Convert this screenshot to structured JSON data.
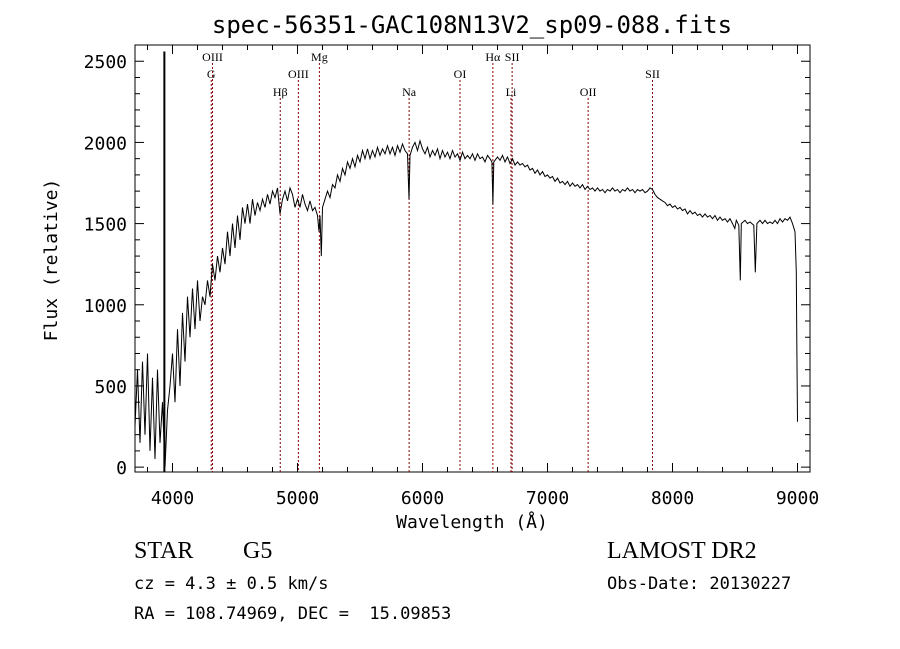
{
  "chart_data": {
    "type": "line",
    "title": "spec-56351-GAC108N13V2_sp09-088.fits",
    "xlabel": "Wavelength (Å)",
    "ylabel": "Flux (relative)",
    "xlim": [
      3700,
      9100
    ],
    "ylim": [
      -30,
      2600
    ],
    "xticks": [
      4000,
      5000,
      6000,
      7000,
      8000,
      9000
    ],
    "yticks": [
      0,
      500,
      1000,
      1500,
      2000,
      2500
    ],
    "xtick_labels": [
      "4000",
      "5000",
      "6000",
      "7000",
      "8000",
      "9000"
    ],
    "ytick_labels": [
      "0",
      "500",
      "1000",
      "1500",
      "2000",
      "2500"
    ],
    "grid": false,
    "legend": "none",
    "line_color": "#000000",
    "marker_line_color": "#8b0000",
    "vertical_marker": {
      "x": 3935,
      "y_top": 2560
    },
    "spectral_lines": [
      {
        "label": "OIII",
        "x": 4320,
        "row": 0
      },
      {
        "label": "G",
        "x": 4310,
        "row": 1
      },
      {
        "label": "Hβ",
        "x": 4862,
        "row": 2
      },
      {
        "label": "OIII",
        "x": 5007,
        "row": 1
      },
      {
        "label": "Mg",
        "x": 5175,
        "row": 0
      },
      {
        "label": "Na",
        "x": 5893,
        "row": 2
      },
      {
        "label": "OI",
        "x": 6300,
        "row": 1
      },
      {
        "label": "Hα",
        "x": 6563,
        "row": 0
      },
      {
        "label": "SII",
        "x": 6717,
        "row": 0
      },
      {
        "label": "Li",
        "x": 6708,
        "row": 2
      },
      {
        "label": "OII",
        "x": 7325,
        "row": 2
      },
      {
        "label": "SII",
        "x": 7840,
        "row": 1
      }
    ],
    "series": [
      {
        "points": [
          [
            3700,
            250
          ],
          [
            3720,
            600
          ],
          [
            3740,
            150
          ],
          [
            3760,
            650
          ],
          [
            3780,
            200
          ],
          [
            3800,
            700
          ],
          [
            3820,
            100
          ],
          [
            3840,
            550
          ],
          [
            3860,
            50
          ],
          [
            3880,
            600
          ],
          [
            3900,
            150
          ],
          [
            3920,
            400
          ],
          [
            3940,
            0
          ],
          [
            3960,
            350
          ],
          [
            3980,
            500
          ],
          [
            4000,
            700
          ],
          [
            4020,
            400
          ],
          [
            4040,
            850
          ],
          [
            4060,
            500
          ],
          [
            4080,
            950
          ],
          [
            4100,
            650
          ],
          [
            4120,
            1050
          ],
          [
            4140,
            800
          ],
          [
            4160,
            1100
          ],
          [
            4180,
            850
          ],
          [
            4200,
            1150
          ],
          [
            4220,
            900
          ],
          [
            4240,
            1050
          ],
          [
            4260,
            1000
          ],
          [
            4280,
            1150
          ],
          [
            4300,
            1050
          ],
          [
            4320,
            1250
          ],
          [
            4340,
            1150
          ],
          [
            4360,
            1300
          ],
          [
            4380,
            1200
          ],
          [
            4400,
            1350
          ],
          [
            4420,
            1250
          ],
          [
            4440,
            1450
          ],
          [
            4460,
            1300
          ],
          [
            4480,
            1500
          ],
          [
            4500,
            1350
          ],
          [
            4520,
            1550
          ],
          [
            4540,
            1400
          ],
          [
            4560,
            1600
          ],
          [
            4580,
            1500
          ],
          [
            4600,
            1620
          ],
          [
            4620,
            1500
          ],
          [
            4640,
            1650
          ],
          [
            4660,
            1550
          ],
          [
            4680,
            1630
          ],
          [
            4700,
            1580
          ],
          [
            4720,
            1650
          ],
          [
            4740,
            1600
          ],
          [
            4760,
            1680
          ],
          [
            4780,
            1620
          ],
          [
            4800,
            1700
          ],
          [
            4820,
            1660
          ],
          [
            4840,
            1720
          ],
          [
            4860,
            1560
          ],
          [
            4880,
            1650
          ],
          [
            4900,
            1700
          ],
          [
            4920,
            1640
          ],
          [
            4940,
            1720
          ],
          [
            4960,
            1680
          ],
          [
            4980,
            1600
          ],
          [
            5000,
            1650
          ],
          [
            5020,
            1600
          ],
          [
            5040,
            1680
          ],
          [
            5060,
            1620
          ],
          [
            5080,
            1580
          ],
          [
            5100,
            1640
          ],
          [
            5120,
            1580
          ],
          [
            5140,
            1600
          ],
          [
            5160,
            1550
          ],
          [
            5172,
            1450
          ],
          [
            5180,
            1550
          ],
          [
            5190,
            1300
          ],
          [
            5200,
            1600
          ],
          [
            5220,
            1650
          ],
          [
            5240,
            1700
          ],
          [
            5260,
            1660
          ],
          [
            5280,
            1740
          ],
          [
            5300,
            1720
          ],
          [
            5320,
            1800
          ],
          [
            5340,
            1760
          ],
          [
            5360,
            1840
          ],
          [
            5380,
            1800
          ],
          [
            5400,
            1880
          ],
          [
            5420,
            1840
          ],
          [
            5440,
            1900
          ],
          [
            5460,
            1850
          ],
          [
            5480,
            1920
          ],
          [
            5500,
            1880
          ],
          [
            5520,
            1950
          ],
          [
            5540,
            1900
          ],
          [
            5560,
            1960
          ],
          [
            5580,
            1900
          ],
          [
            5600,
            1950
          ],
          [
            5620,
            1910
          ],
          [
            5640,
            1970
          ],
          [
            5660,
            1920
          ],
          [
            5680,
            1960
          ],
          [
            5700,
            1930
          ],
          [
            5720,
            1980
          ],
          [
            5740,
            1930
          ],
          [
            5760,
            1970
          ],
          [
            5780,
            1920
          ],
          [
            5800,
            1980
          ],
          [
            5820,
            1940
          ],
          [
            5840,
            1990
          ],
          [
            5860,
            1950
          ],
          [
            5880,
            1930
          ],
          [
            5892,
            1650
          ],
          [
            5900,
            1920
          ],
          [
            5920,
            1970
          ],
          [
            5940,
            2000
          ],
          [
            5960,
            1950
          ],
          [
            5980,
            2010
          ],
          [
            6000,
            1960
          ],
          [
            6020,
            1930
          ],
          [
            6040,
            1970
          ],
          [
            6060,
            1910
          ],
          [
            6080,
            1950
          ],
          [
            6100,
            1920
          ],
          [
            6120,
            1960
          ],
          [
            6140,
            1900
          ],
          [
            6160,
            1950
          ],
          [
            6180,
            1910
          ],
          [
            6200,
            1940
          ],
          [
            6220,
            1900
          ],
          [
            6240,
            1950
          ],
          [
            6260,
            1910
          ],
          [
            6280,
            1930
          ],
          [
            6300,
            1890
          ],
          [
            6320,
            1940
          ],
          [
            6340,
            1900
          ],
          [
            6360,
            1920
          ],
          [
            6380,
            1900
          ],
          [
            6400,
            1930
          ],
          [
            6420,
            1890
          ],
          [
            6440,
            1930
          ],
          [
            6460,
            1900
          ],
          [
            6480,
            1910
          ],
          [
            6500,
            1880
          ],
          [
            6520,
            1920
          ],
          [
            6540,
            1900
          ],
          [
            6555,
            1880
          ],
          [
            6563,
            1620
          ],
          [
            6570,
            1880
          ],
          [
            6600,
            1910
          ],
          [
            6620,
            1890
          ],
          [
            6640,
            1920
          ],
          [
            6660,
            1880
          ],
          [
            6680,
            1910
          ],
          [
            6700,
            1870
          ],
          [
            6720,
            1900
          ],
          [
            6740,
            1860
          ],
          [
            6760,
            1880
          ],
          [
            6780,
            1860
          ],
          [
            6800,
            1870
          ],
          [
            6820,
            1850
          ],
          [
            6840,
            1860
          ],
          [
            6860,
            1830
          ],
          [
            6880,
            1840
          ],
          [
            6900,
            1810
          ],
          [
            6920,
            1830
          ],
          [
            6940,
            1800
          ],
          [
            6960,
            1820
          ],
          [
            6980,
            1790
          ],
          [
            7000,
            1800
          ],
          [
            7020,
            1780
          ],
          [
            7040,
            1790
          ],
          [
            7060,
            1760
          ],
          [
            7080,
            1780
          ],
          [
            7100,
            1750
          ],
          [
            7120,
            1760
          ],
          [
            7140,
            1740
          ],
          [
            7160,
            1760
          ],
          [
            7180,
            1730
          ],
          [
            7200,
            1750
          ],
          [
            7220,
            1730
          ],
          [
            7240,
            1740
          ],
          [
            7260,
            1720
          ],
          [
            7280,
            1740
          ],
          [
            7300,
            1710
          ],
          [
            7320,
            1730
          ],
          [
            7340,
            1710
          ],
          [
            7360,
            1720
          ],
          [
            7380,
            1700
          ],
          [
            7400,
            1720
          ],
          [
            7420,
            1700
          ],
          [
            7440,
            1710
          ],
          [
            7460,
            1690
          ],
          [
            7480,
            1710
          ],
          [
            7500,
            1700
          ],
          [
            7520,
            1720
          ],
          [
            7540,
            1700
          ],
          [
            7560,
            1710
          ],
          [
            7580,
            1690
          ],
          [
            7600,
            1710
          ],
          [
            7620,
            1700
          ],
          [
            7640,
            1720
          ],
          [
            7660,
            1700
          ],
          [
            7680,
            1710
          ],
          [
            7700,
            1690
          ],
          [
            7720,
            1710
          ],
          [
            7740,
            1700
          ],
          [
            7760,
            1710
          ],
          [
            7780,
            1690
          ],
          [
            7800,
            1700
          ],
          [
            7820,
            1720
          ],
          [
            7840,
            1710
          ],
          [
            7860,
            1680
          ],
          [
            7880,
            1660
          ],
          [
            7900,
            1650
          ],
          [
            7920,
            1640
          ],
          [
            7940,
            1630
          ],
          [
            7960,
            1610
          ],
          [
            7980,
            1620
          ],
          [
            8000,
            1600
          ],
          [
            8020,
            1610
          ],
          [
            8040,
            1590
          ],
          [
            8060,
            1600
          ],
          [
            8080,
            1580
          ],
          [
            8100,
            1590
          ],
          [
            8120,
            1560
          ],
          [
            8140,
            1580
          ],
          [
            8160,
            1560
          ],
          [
            8180,
            1570
          ],
          [
            8200,
            1550
          ],
          [
            8220,
            1560
          ],
          [
            8240,
            1540
          ],
          [
            8260,
            1560
          ],
          [
            8280,
            1540
          ],
          [
            8300,
            1550
          ],
          [
            8320,
            1530
          ],
          [
            8340,
            1550
          ],
          [
            8360,
            1520
          ],
          [
            8380,
            1540
          ],
          [
            8400,
            1520
          ],
          [
            8420,
            1530
          ],
          [
            8440,
            1510
          ],
          [
            8460,
            1530
          ],
          [
            8480,
            1500
          ],
          [
            8498,
            1470
          ],
          [
            8510,
            1520
          ],
          [
            8530,
            1490
          ],
          [
            8542,
            1150
          ],
          [
            8550,
            1500
          ],
          [
            8580,
            1520
          ],
          [
            8600,
            1500
          ],
          [
            8620,
            1510
          ],
          [
            8650,
            1490
          ],
          [
            8662,
            1200
          ],
          [
            8675,
            1500
          ],
          [
            8700,
            1520
          ],
          [
            8720,
            1500
          ],
          [
            8740,
            1520
          ],
          [
            8760,
            1500
          ],
          [
            8780,
            1510
          ],
          [
            8800,
            1500
          ],
          [
            8820,
            1520
          ],
          [
            8840,
            1500
          ],
          [
            8860,
            1530
          ],
          [
            8880,
            1510
          ],
          [
            8900,
            1530
          ],
          [
            8920,
            1520
          ],
          [
            8940,
            1540
          ],
          [
            8960,
            1500
          ],
          [
            8980,
            1450
          ],
          [
            8990,
            1200
          ],
          [
            8995,
            700
          ],
          [
            9000,
            280
          ]
        ]
      }
    ]
  },
  "info": {
    "object_class": "STAR",
    "subclass": "G5",
    "survey": "LAMOST DR2",
    "redshift": "cz = 4.3 ± 0.5 km/s",
    "obs_date": "Obs-Date: 20130227",
    "coords": "RA = 108.74969, DEC =  15.09853"
  }
}
